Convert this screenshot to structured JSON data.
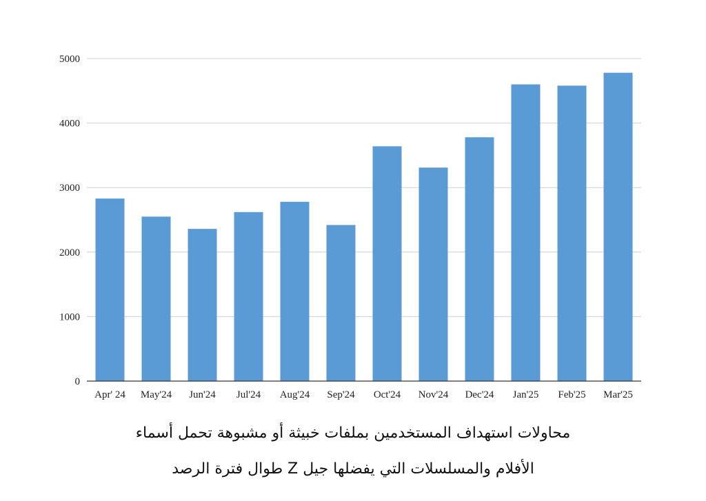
{
  "chart_data": {
    "type": "bar",
    "categories": [
      "Apr' 24",
      "May'24",
      "Jun'24",
      "Jul'24",
      "Aug'24",
      "Sep'24",
      "Oct'24",
      "Nov'24",
      "Dec'24",
      "Jan'25",
      "Feb'25",
      "Mar'25"
    ],
    "values": [
      2830,
      2550,
      2360,
      2620,
      2780,
      2420,
      3640,
      3310,
      3780,
      4600,
      4580,
      4780
    ],
    "yticks": [
      "0",
      "1000",
      "2000",
      "3000",
      "4000",
      "5000"
    ],
    "ylim": [
      0,
      5000
    ],
    "grid": true,
    "legend": "none",
    "bar_color": "#5b9bd5",
    "grid_color": "#d0d0d0",
    "axis_color": "#333333"
  },
  "caption": {
    "line1": "محاولات استهداف المستخدمين بملفات خبيثة أو مشبوهة تحمل أسماء",
    "line2": "الأفلام والمسلسلات التي يفضلها جيل Z طوال فترة الرصد"
  }
}
